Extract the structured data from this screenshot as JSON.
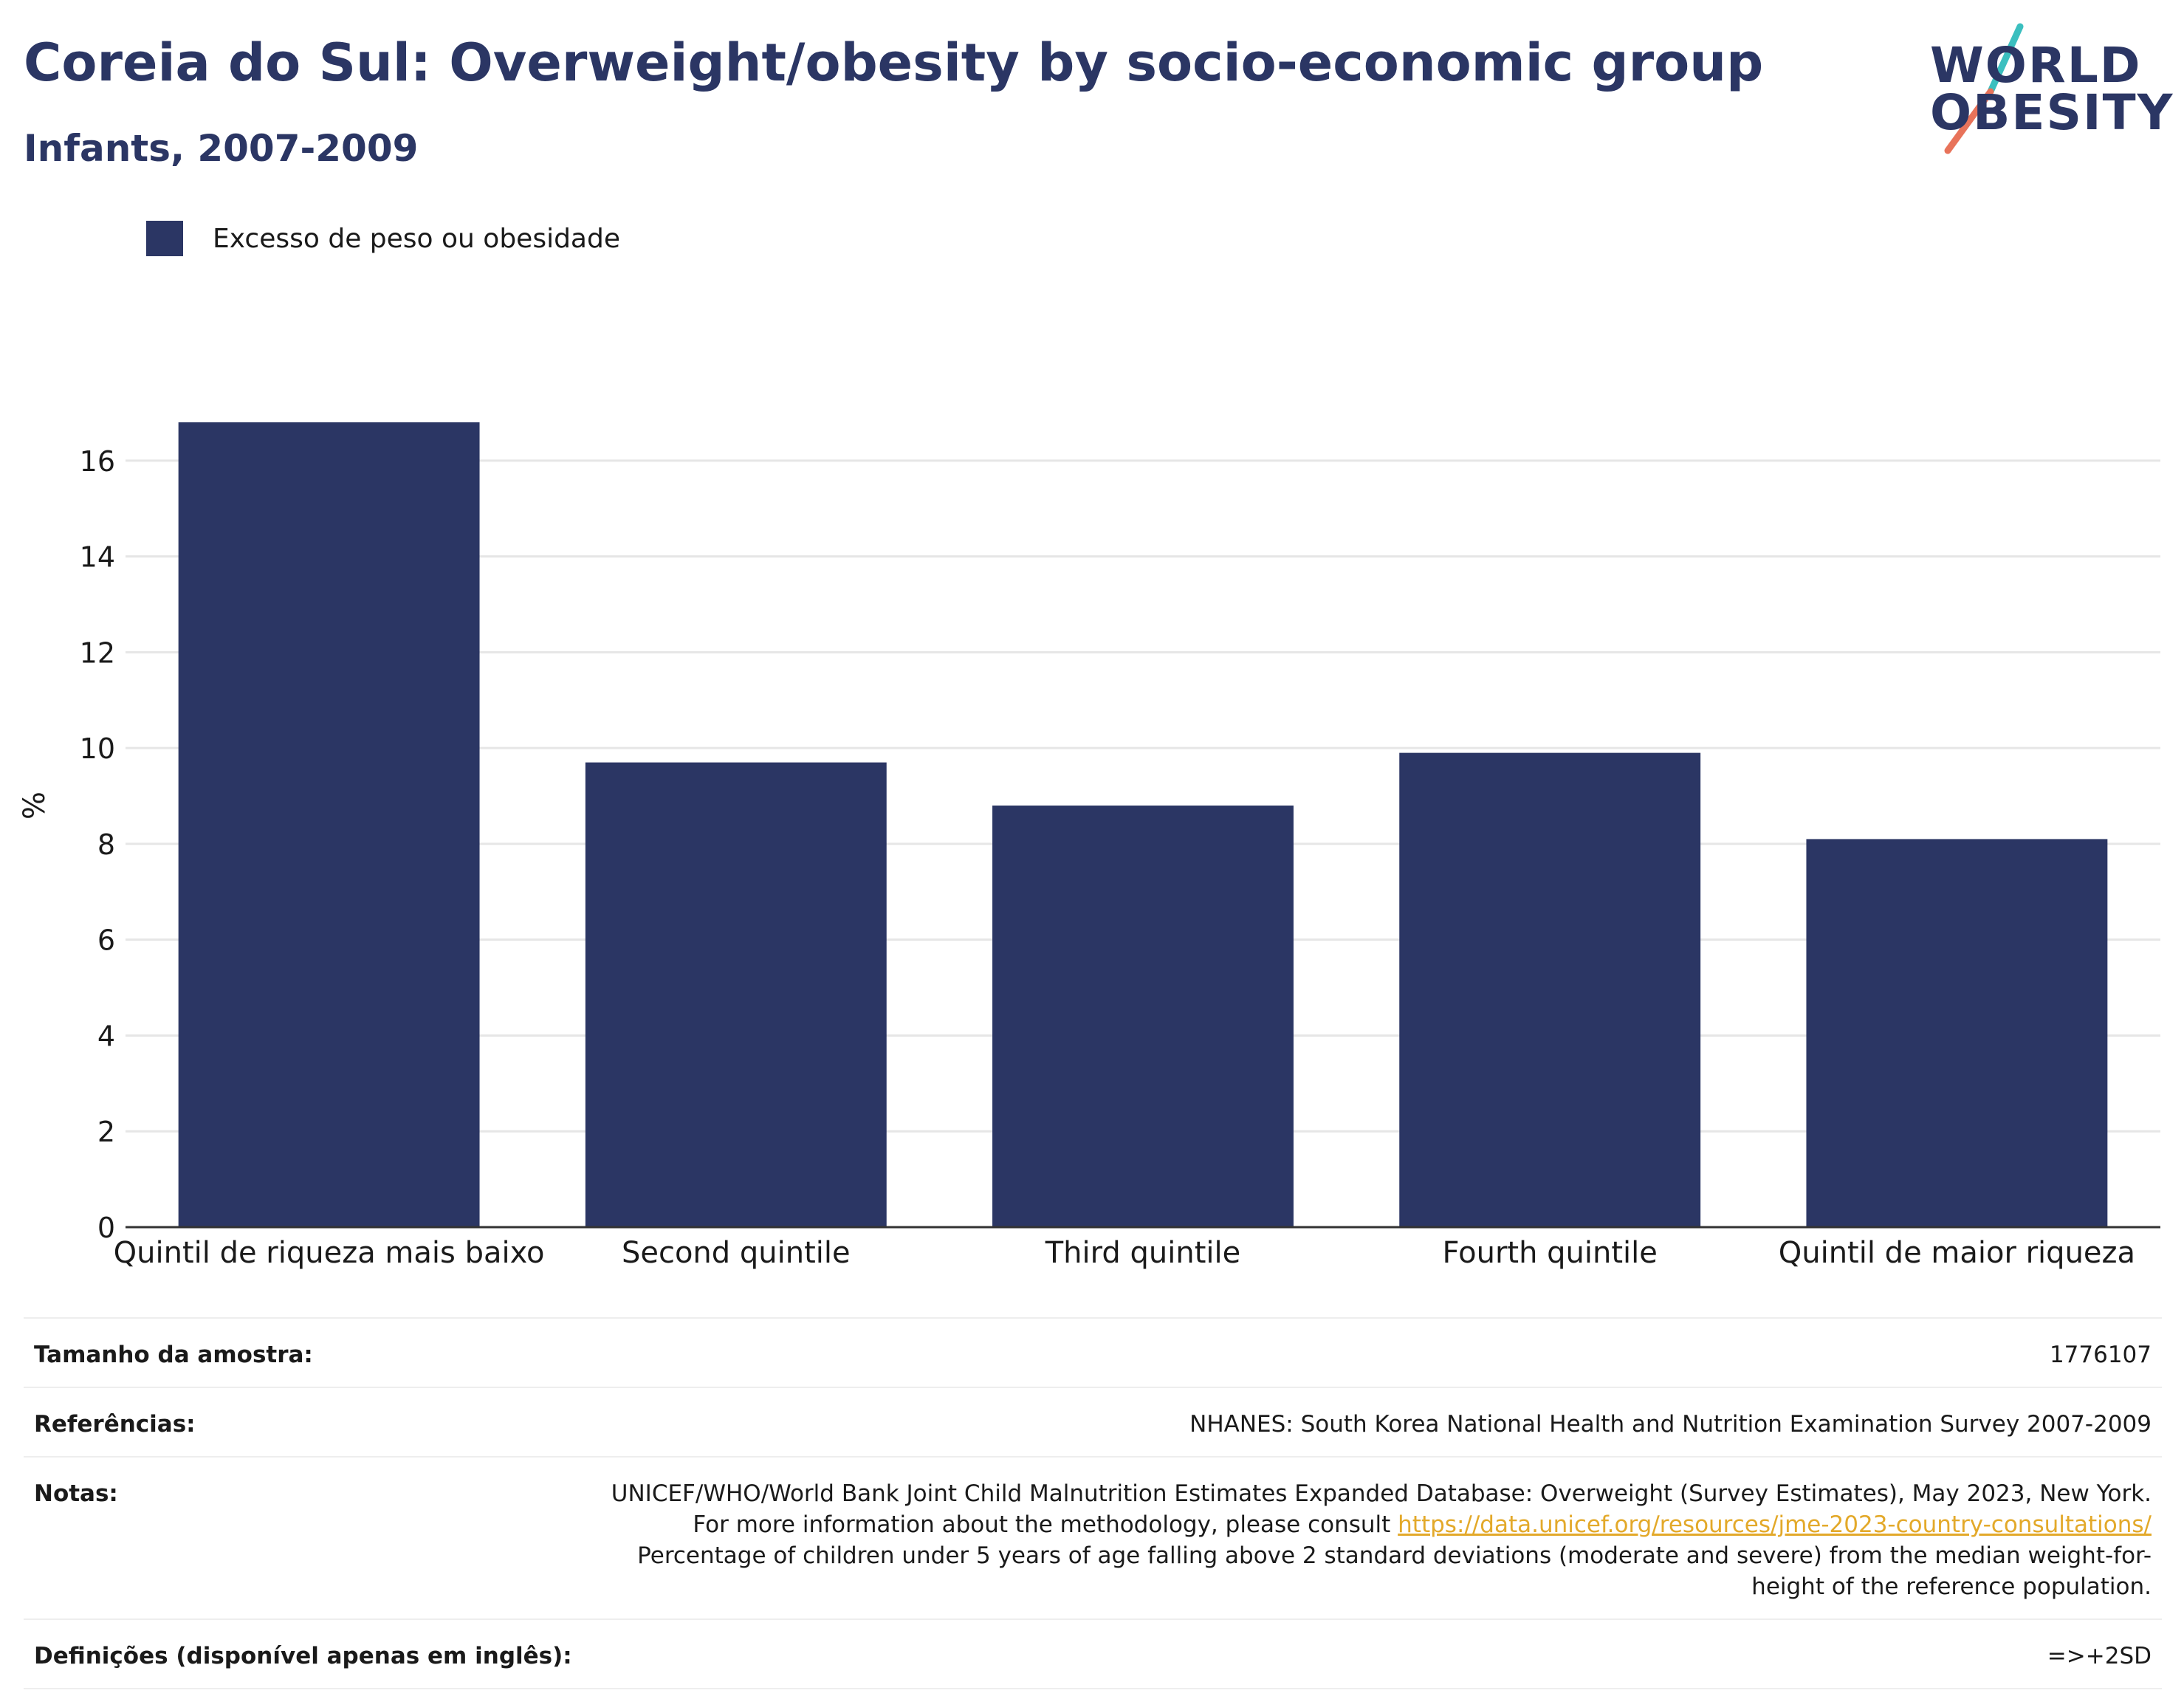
{
  "header": {
    "title": "Coreia do Sul: Overweight/obesity by socio-economic group",
    "subtitle": "Infants, 2007-2009"
  },
  "logo": {
    "line1": "WORLD",
    "line2": "OBESITY",
    "colors": {
      "text": "#2b3664",
      "slash_top": "#3bbfbf",
      "slash_bottom": "#e8735a"
    }
  },
  "legend": {
    "label": "Excesso de peso ou obesidade",
    "color": "#2b3664"
  },
  "chart_data": {
    "type": "bar",
    "categories": [
      "Quintil de riqueza mais baixo",
      "Second quintile",
      "Third quintile",
      "Fourth quintile",
      "Quintil de maior riqueza"
    ],
    "series": [
      {
        "name": "Excesso de peso ou obesidade",
        "values": [
          16.8,
          9.7,
          8.8,
          9.9,
          8.1
        ],
        "color": "#2b3664"
      }
    ],
    "ylabel": "%",
    "xlabel": "",
    "ylim": [
      0,
      17.6
    ],
    "yticks": [
      0,
      2,
      4,
      6,
      8,
      10,
      12,
      14,
      16
    ],
    "grid": true,
    "legend_position": "top-left"
  },
  "info": {
    "sample_size": {
      "key": "Tamanho da amostra:",
      "value": "1776107"
    },
    "references": {
      "key": "Referências:",
      "value": "NHANES: South Korea National Health and Nutrition Examination Survey 2007-2009"
    },
    "notes": {
      "key": "Notas:",
      "text1": "UNICEF/WHO/World Bank Joint Child Malnutrition Estimates Expanded Database: Overweight (Survey Estimates), May 2023, New York. For more information about the methodology, please consult ",
      "link": "https://data.unicef.org/resources/jme-2023-country-consultations/",
      "text2": " Percentage of children under 5 years of age falling above 2 standard deviations (moderate and severe) from the median weight-for-height of the reference population."
    },
    "definitions": {
      "key": "Definições (disponível apenas em inglês):",
      "value": "=>+2SD"
    }
  }
}
